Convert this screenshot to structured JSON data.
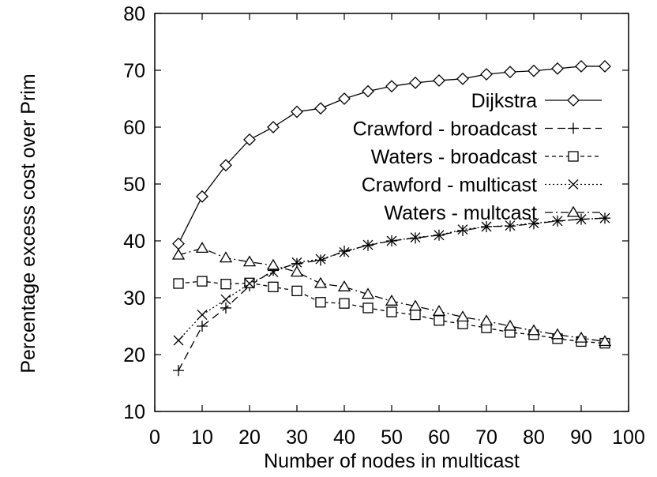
{
  "chart_data": {
    "type": "line",
    "title": "",
    "xlabel": "Number of nodes in multicast",
    "ylabel": "Percentage excess cost over Prim",
    "xlim": [
      0,
      100
    ],
    "ylim": [
      10,
      80
    ],
    "xticks": [
      "0",
      "10",
      "20",
      "30",
      "40",
      "50",
      "60",
      "70",
      "80",
      "90",
      "100"
    ],
    "yticks": [
      "10",
      "20",
      "30",
      "40",
      "50",
      "60",
      "70",
      "80"
    ],
    "grid": false,
    "legend_position": "right, inside plot",
    "x": [
      5,
      10,
      15,
      20,
      25,
      30,
      35,
      40,
      45,
      50,
      55,
      60,
      65,
      70,
      75,
      80,
      85,
      90,
      95
    ],
    "series": [
      {
        "name": "Dijkstra",
        "marker": "diamond",
        "dash": "solid",
        "values": [
          39.5,
          47.8,
          53.3,
          57.8,
          60.0,
          62.7,
          63.3,
          65.0,
          66.3,
          67.2,
          67.8,
          68.2,
          68.5,
          69.3,
          69.7,
          69.9,
          70.3,
          70.7,
          70.7
        ]
      },
      {
        "name": "Crawford - broadcast",
        "marker": "plus",
        "dash": "dashed",
        "values": [
          17.2,
          25.0,
          28.2,
          32.1,
          34.8,
          36.0,
          36.6,
          38.2,
          39.2,
          40.0,
          40.5,
          41.0,
          41.8,
          42.5,
          42.6,
          43.0,
          43.5,
          43.8,
          44.0
        ]
      },
      {
        "name": "Waters - broadcast",
        "marker": "square",
        "dash": "dashed-fine",
        "values": [
          32.5,
          32.9,
          32.4,
          32.6,
          31.9,
          31.2,
          29.2,
          29.0,
          28.2,
          27.5,
          27.0,
          26.0,
          25.4,
          24.7,
          23.9,
          23.5,
          22.8,
          22.3,
          22.0
        ]
      },
      {
        "name": "Crawford - multicast",
        "marker": "cross",
        "dash": "dotted",
        "values": [
          22.5,
          27.0,
          29.7,
          32.5,
          34.5,
          36.2,
          36.8,
          38.0,
          39.3,
          40.0,
          40.6,
          41.0,
          42.0,
          42.5,
          42.7,
          43.1,
          43.5,
          43.8,
          44.0
        ]
      },
      {
        "name": "Waters - multcast",
        "marker": "triangle",
        "dash": "dash-dot",
        "values": [
          37.5,
          38.7,
          37.0,
          36.3,
          35.7,
          34.5,
          32.5,
          31.9,
          30.6,
          29.4,
          28.5,
          27.6,
          26.6,
          25.9,
          25.0,
          24.2,
          23.5,
          22.9,
          22.3
        ]
      }
    ]
  }
}
